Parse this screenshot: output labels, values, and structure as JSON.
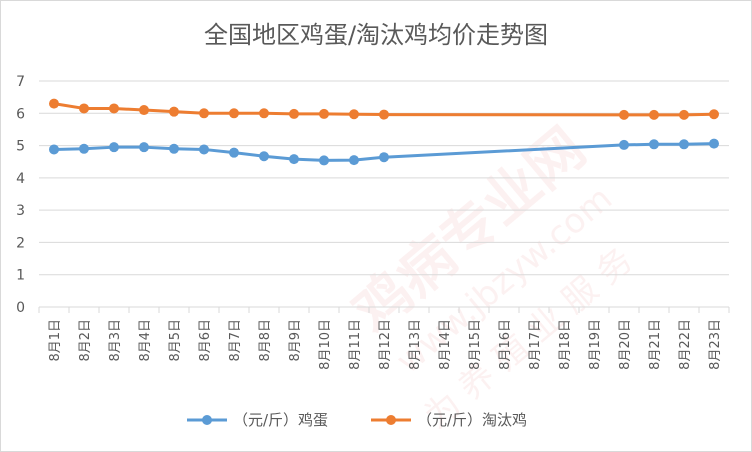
{
  "chart_data": {
    "type": "line",
    "title": "全国地区鸡蛋/淘汰鸡均价走势图",
    "xlabel": "",
    "ylabel": "",
    "ylim": [
      0,
      7
    ],
    "yticks": [
      0,
      1,
      2,
      3,
      4,
      5,
      6,
      7
    ],
    "grid": true,
    "legend_position": "bottom",
    "categories": [
      "8月1日",
      "8月2日",
      "8月3日",
      "8月4日",
      "8月5日",
      "8月6日",
      "8月7日",
      "8月8日",
      "8月9日",
      "8月10日",
      "8月11日",
      "8月12日",
      "8月13日",
      "8月14日",
      "8月15日",
      "8月16日",
      "8月17日",
      "8月18日",
      "8月19日",
      "8月20日",
      "8月21日",
      "8月22日",
      "8月23日"
    ],
    "series": [
      {
        "name": "（元/斤）鸡蛋",
        "color": "#5b9bd5",
        "values": [
          4.88,
          4.9,
          4.95,
          4.95,
          4.9,
          4.88,
          4.78,
          4.67,
          4.58,
          4.54,
          4.55,
          4.64,
          null,
          null,
          null,
          null,
          null,
          null,
          null,
          5.02,
          5.04,
          5.04,
          5.06
        ]
      },
      {
        "name": "（元/斤）淘汰鸡",
        "color": "#ed7d31",
        "values": [
          6.3,
          6.15,
          6.15,
          6.1,
          6.05,
          6.0,
          6.0,
          6.0,
          5.98,
          5.98,
          5.97,
          5.96,
          null,
          null,
          null,
          null,
          null,
          null,
          null,
          5.95,
          5.95,
          5.95,
          5.97
        ]
      }
    ]
  },
  "watermark": {
    "main": "鸡病专业网",
    "url": "www.jbzyw.com",
    "slogan": "为 养 殖 业 服 务"
  }
}
